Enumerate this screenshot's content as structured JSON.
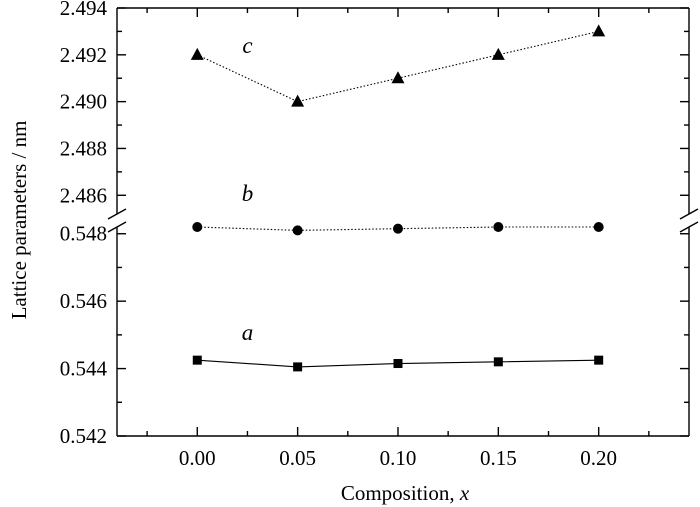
{
  "chart_data": {
    "type": "line",
    "xlabel_text": "Composition, ",
    "xlabel_var": "x",
    "ylabel": "Lattice parameters / nm",
    "x": [
      0.0,
      0.05,
      0.1,
      0.15,
      0.2
    ],
    "x_tick_labels": [
      "0.00",
      "0.05",
      "0.10",
      "0.15",
      "0.20"
    ],
    "xlim": [
      -0.04,
      0.245
    ],
    "axis_break": true,
    "panels": [
      {
        "id": "upper",
        "ylim": [
          2.4852,
          2.494
        ],
        "y_tick_values": [
          2.486,
          2.488,
          2.49,
          2.492,
          2.494
        ],
        "y_tick_labels": [
          "2.486",
          "2.488",
          "2.490",
          "2.492",
          "2.494"
        ],
        "series": [
          {
            "key": "c",
            "label": "c",
            "marker": "triangle",
            "line_style": "dotted",
            "color": "#000000",
            "values": [
              2.492,
              2.49,
              2.491,
              2.492,
              2.493
            ]
          }
        ]
      },
      {
        "id": "lower",
        "ylim": [
          0.542,
          0.5482
        ],
        "y_tick_values": [
          0.542,
          0.544,
          0.546,
          0.548
        ],
        "y_tick_labels": [
          "0.542",
          "0.544",
          "0.546",
          "0.548"
        ],
        "series": [
          {
            "key": "b",
            "label": "b",
            "marker": "circle",
            "line_style": "dotted",
            "color": "#000000",
            "values": [
              0.5482,
              0.5481,
              0.54815,
              0.5482,
              0.5482
            ]
          },
          {
            "key": "a",
            "label": "a",
            "marker": "square",
            "line_style": "solid",
            "color": "#000000",
            "values": [
              0.54425,
              0.54405,
              0.54415,
              0.5442,
              0.54425
            ]
          }
        ]
      }
    ],
    "grid": false,
    "legend": "none"
  }
}
